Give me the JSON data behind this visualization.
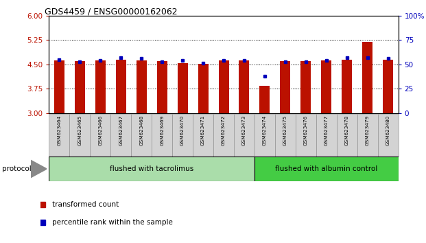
{
  "title": "GDS4459 / ENSG00000162062",
  "samples": [
    "GSM623464",
    "GSM623465",
    "GSM623466",
    "GSM623467",
    "GSM623468",
    "GSM623469",
    "GSM623470",
    "GSM623471",
    "GSM623472",
    "GSM623473",
    "GSM623474",
    "GSM623475",
    "GSM623476",
    "GSM623477",
    "GSM623478",
    "GSM623479",
    "GSM623480"
  ],
  "red_values": [
    4.62,
    4.6,
    4.62,
    4.65,
    4.62,
    4.6,
    4.53,
    4.51,
    4.62,
    4.62,
    3.83,
    4.6,
    4.6,
    4.62,
    4.65,
    5.2,
    4.65
  ],
  "blue_values": [
    55,
    53,
    54,
    57,
    56,
    53,
    54,
    51,
    54,
    54,
    38,
    53,
    53,
    54,
    57,
    57,
    56
  ],
  "ymin": 3,
  "ymax": 6,
  "y_ticks_left": [
    3,
    3.75,
    4.5,
    5.25,
    6
  ],
  "y_ticks_right": [
    0,
    25,
    50,
    75,
    100
  ],
  "protocol_groups": [
    {
      "label": "flushed with tacrolimus",
      "count": 10,
      "color": "#aaddaa"
    },
    {
      "label": "flushed with albumin control",
      "count": 7,
      "color": "#44cc44"
    }
  ],
  "red_color": "#bb1100",
  "blue_color": "#0000bb",
  "bar_width": 0.5,
  "bg_color": "#ffffff",
  "legend_red_label": "transformed count",
  "legend_blue_label": "percentile rank within the sample",
  "protocol_label": "protocol"
}
